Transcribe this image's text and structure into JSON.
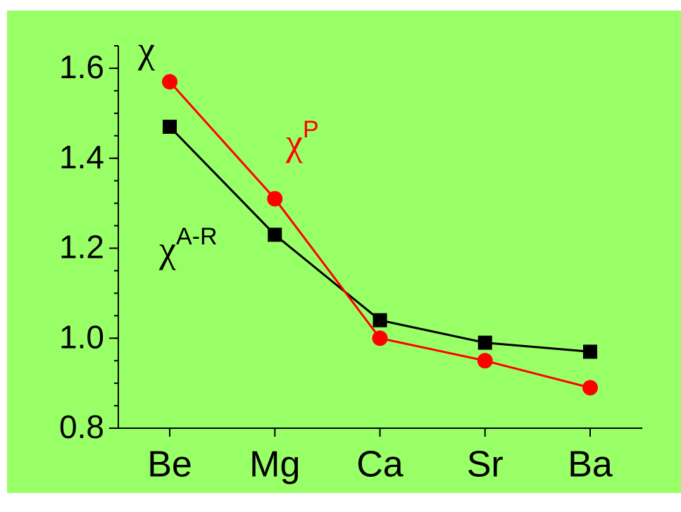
{
  "chart_data": {
    "type": "line",
    "y_label": "χ",
    "categories": [
      "Be",
      "Mg",
      "Ca",
      "Sr",
      "Ba"
    ],
    "series": [
      {
        "name": "χ",
        "name_superscript": "A-R",
        "color": "#000000",
        "marker": "square",
        "values": [
          1.47,
          1.23,
          1.04,
          0.99,
          0.97
        ]
      },
      {
        "name": "χ",
        "name_superscript": "P",
        "color": "#ff0000",
        "marker": "circle",
        "values": [
          1.57,
          1.31,
          1.0,
          0.95,
          0.89
        ]
      }
    ],
    "ylim": [
      0.8,
      1.65
    ],
    "yticks": [
      0.8,
      {
        "value": 1.0,
        "label": "1.0"
      },
      1.2,
      1.4,
      1.6
    ],
    "yminor_step": 0.05,
    "background": "#99ff66"
  }
}
